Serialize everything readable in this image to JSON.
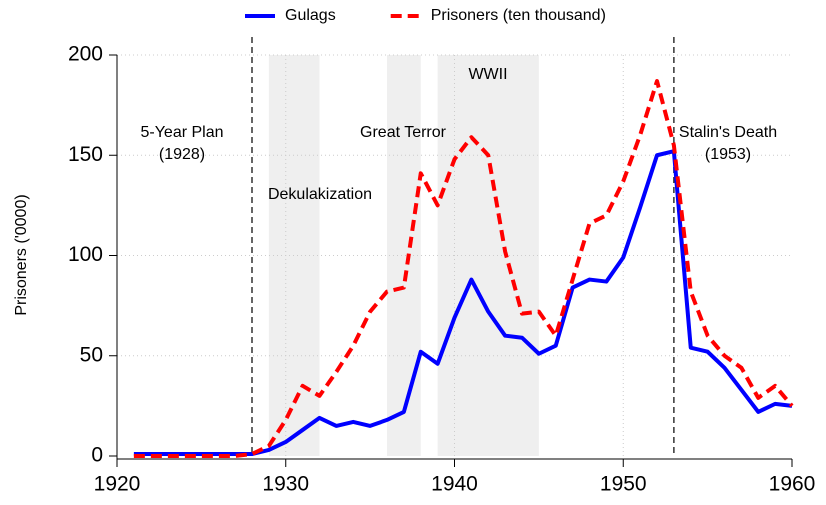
{
  "chart_data": {
    "type": "line",
    "y_label": "Prisoners ('0000)",
    "x": [
      1921,
      1922,
      1923,
      1924,
      1925,
      1926,
      1927,
      1928,
      1929,
      1930,
      1931,
      1932,
      1933,
      1934,
      1935,
      1936,
      1937,
      1938,
      1939,
      1940,
      1941,
      1942,
      1943,
      1944,
      1945,
      1946,
      1947,
      1948,
      1949,
      1950,
      1951,
      1952,
      1953,
      1954,
      1955,
      1956,
      1957,
      1958,
      1959,
      1960
    ],
    "series": [
      {
        "name": "Gulags",
        "color": "#0000ff",
        "dash": false,
        "values": [
          1,
          1,
          1,
          1,
          1,
          1,
          1,
          1,
          3,
          7,
          13,
          19,
          15,
          17,
          15,
          18,
          22,
          52,
          46,
          69,
          88,
          72,
          60,
          59,
          51,
          55,
          84,
          88,
          87,
          99,
          124,
          150,
          152,
          54,
          52,
          44,
          33,
          22,
          26,
          25
        ]
      },
      {
        "name": "Prisoners (ten thousand)",
        "color": "#ff0000",
        "dash": true,
        "values": [
          0,
          0,
          0,
          0,
          0,
          0,
          0,
          1,
          5,
          18,
          35,
          30,
          42,
          55,
          72,
          82,
          84,
          141,
          125,
          148,
          159,
          150,
          102,
          71,
          72,
          60,
          88,
          116,
          120,
          137,
          160,
          187,
          155,
          82,
          60,
          50,
          44,
          29,
          35,
          25
        ]
      }
    ],
    "xlim": [
      1920,
      1960
    ],
    "xticks": [
      1920,
      1930,
      1940,
      1950,
      1960
    ],
    "ylim": [
      0,
      200
    ],
    "yticks": [
      0,
      50,
      100,
      150,
      200
    ],
    "grid": true,
    "legend": "top",
    "shaded_spans": [
      [
        1929,
        1932
      ],
      [
        1936,
        1938
      ],
      [
        1939,
        1945
      ]
    ],
    "vlines": [
      1928,
      1953
    ],
    "annotations": [
      [
        "5-Year Plan",
        "(1928)"
      ],
      [
        "Dekulakization"
      ],
      [
        "Great Terror"
      ],
      [
        "WWII"
      ],
      [
        "Stalin's Death",
        "(1953)"
      ]
    ]
  }
}
